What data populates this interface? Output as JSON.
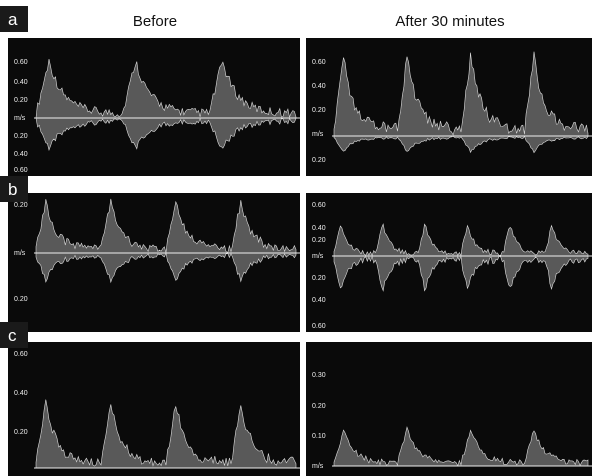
{
  "header": {
    "before": "Before",
    "after": "After 30 minutes"
  },
  "panels": [
    {
      "label": "a",
      "left_ticks": [
        "0.60",
        "0.40",
        "0.20",
        "m/s",
        "0.20",
        "0.40",
        "0.60"
      ],
      "right_ticks": [
        "0.60",
        "0.40",
        "0.20",
        "m/s",
        "0.20"
      ]
    },
    {
      "label": "b",
      "left_ticks": [
        "0.20",
        "m/s",
        "0.20"
      ],
      "right_ticks": [
        "0.60",
        "0.40",
        "0.20",
        "m/s",
        "0.20",
        "0.40",
        "0.60"
      ]
    },
    {
      "label": "c",
      "left_ticks": [
        "0.60",
        "0.40",
        "0.20"
      ],
      "right_ticks": [
        "0.30",
        "0.20",
        "0.10",
        "m/s"
      ]
    }
  ]
}
